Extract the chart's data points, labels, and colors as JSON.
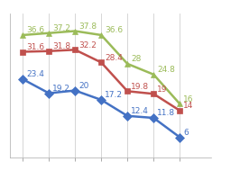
{
  "series": [
    {
      "label": "Blue",
      "values": [
        23.4,
        19.2,
        20.0,
        17.2,
        12.4,
        11.8,
        6.0
      ],
      "color": "#4472C4",
      "marker": "D",
      "ann_offsets": [
        [
          3,
          2
        ],
        [
          3,
          2
        ],
        [
          3,
          2
        ],
        [
          3,
          2
        ],
        [
          3,
          2
        ],
        [
          3,
          2
        ],
        [
          3,
          2
        ]
      ]
    },
    {
      "label": "Red",
      "values": [
        31.6,
        31.8,
        32.2,
        28.4,
        19.8,
        19.0,
        14.0
      ],
      "color": "#C0504D",
      "marker": "s",
      "ann_offsets": [
        [
          3,
          2
        ],
        [
          3,
          2
        ],
        [
          3,
          2
        ],
        [
          3,
          2
        ],
        [
          3,
          2
        ],
        [
          3,
          2
        ],
        [
          3,
          2
        ]
      ]
    },
    {
      "label": "Green",
      "values": [
        36.6,
        37.2,
        37.8,
        36.6,
        28.0,
        24.8,
        16.0
      ],
      "color": "#9BBB59",
      "marker": "^",
      "ann_offsets": [
        [
          3,
          2
        ],
        [
          3,
          2
        ],
        [
          3,
          2
        ],
        [
          3,
          2
        ],
        [
          3,
          2
        ],
        [
          3,
          2
        ],
        [
          3,
          2
        ]
      ]
    }
  ],
  "ann_labels": {
    "blue": [
      "23.4",
      "19.2",
      "20",
      "17.2",
      "12.4",
      "11.8",
      "6"
    ],
    "red": [
      "31.6",
      "31.8",
      "32.2",
      "28.4",
      "19.8",
      "19",
      "14"
    ],
    "green": [
      "36.6",
      "37.2",
      "37.8",
      "36.6",
      "28",
      "24.8",
      "16"
    ]
  },
  "x_count": 7,
  "ylim": [
    0,
    43
  ],
  "xlim": [
    -0.5,
    7.2
  ],
  "background_color": "#FFFFFF",
  "plot_bg_color": "#FFFFFF",
  "grid_color": "#D0D0D0",
  "annotation_fontsize": 6.5,
  "linewidth": 1.8,
  "markersize": 5
}
